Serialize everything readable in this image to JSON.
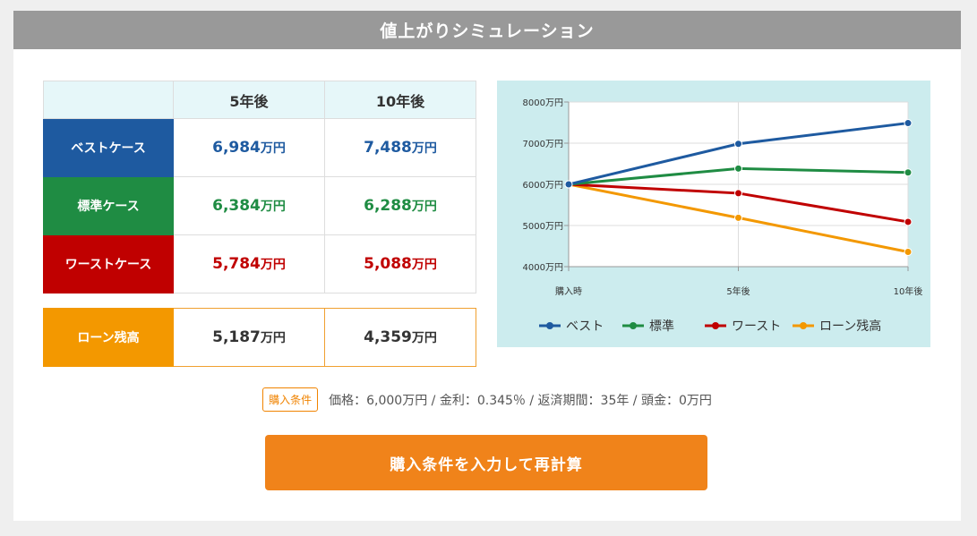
{
  "header": {
    "title": "値上がりシミュレーション"
  },
  "table": {
    "columns": [
      "5年後",
      "10年後"
    ],
    "rows": [
      {
        "label": "ベストケース",
        "v5": "6,984",
        "v10": "7,488"
      },
      {
        "label": "標準ケース",
        "v5": "6,384",
        "v10": "6,288"
      },
      {
        "label": "ワーストケース",
        "v5": "5,784",
        "v10": "5,088"
      }
    ],
    "unit": "万円"
  },
  "loan": {
    "label": "ローン残高",
    "v5": "5,187",
    "v10": "4,359",
    "unit": "万円"
  },
  "colors": {
    "best": "#1e5aa0",
    "standard": "#1f8c43",
    "worst": "#c00000",
    "loan": "#f39800",
    "button": "#f0831a"
  },
  "chart_data": {
    "type": "line",
    "categories": [
      "購入時",
      "5年後",
      "10年後"
    ],
    "y_ticks": [
      "4000万円",
      "5000万円",
      "6000万円",
      "7000万円",
      "8000万円"
    ],
    "ylim": [
      4000,
      8000
    ],
    "grid": true,
    "legend_position": "bottom",
    "series": [
      {
        "name": "ベスト",
        "color": "#1e5aa0",
        "values": [
          6000,
          6984,
          7488
        ]
      },
      {
        "name": "標準",
        "color": "#1f8c43",
        "values": [
          6000,
          6384,
          6288
        ]
      },
      {
        "name": "ワースト",
        "color": "#c00000",
        "values": [
          6000,
          5784,
          5088
        ]
      },
      {
        "name": "ローン残高",
        "color": "#f39800",
        "values": [
          6000,
          5187,
          4359
        ]
      }
    ]
  },
  "conditions": {
    "badge": "購入条件",
    "text": "価格：6,000万円 / 金利：0.345％ / 返済期間：35年 / 頭金：0万円"
  },
  "button": {
    "label": "購入条件を入力して再計算"
  }
}
